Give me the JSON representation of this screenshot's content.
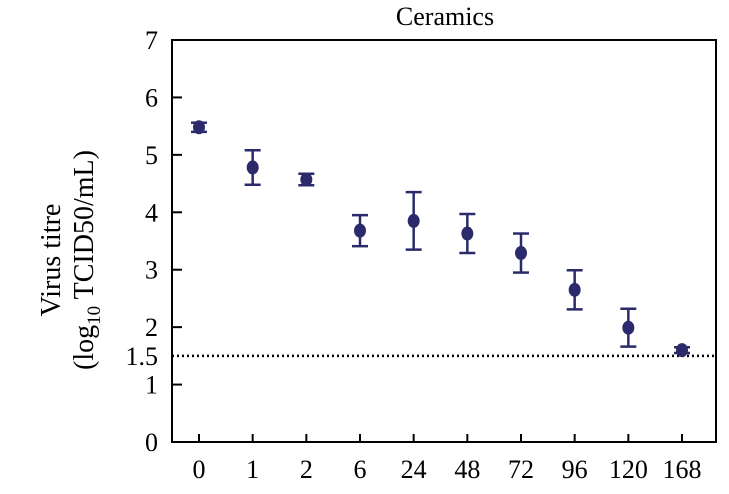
{
  "chart_data": {
    "type": "scatter",
    "title": "Ceramics",
    "ylabel_line1": "Virus titre",
    "ylabel_line2_prefix": "(log",
    "ylabel_line2_sub": "10",
    "ylabel_line2_suffix": " TCID50/mL)",
    "xlabel": "",
    "categories": [
      "0",
      "1",
      "2",
      "6",
      "24",
      "48",
      "72",
      "96",
      "120",
      "168"
    ],
    "values": [
      5.48,
      4.78,
      4.57,
      3.68,
      3.85,
      3.63,
      3.29,
      2.65,
      1.99,
      1.6
    ],
    "errors": [
      0.08,
      0.3,
      0.1,
      0.27,
      0.5,
      0.34,
      0.34,
      0.34,
      0.33,
      0.05
    ],
    "ylim": [
      0,
      7
    ],
    "yticks": [
      "0",
      "1",
      "2",
      "3",
      "4",
      "5",
      "6",
      "7"
    ],
    "reference_line": {
      "value": 1.5,
      "label": "1.5",
      "style": "dotted"
    },
    "marker_color": "#2b2a6b",
    "grid": false
  }
}
